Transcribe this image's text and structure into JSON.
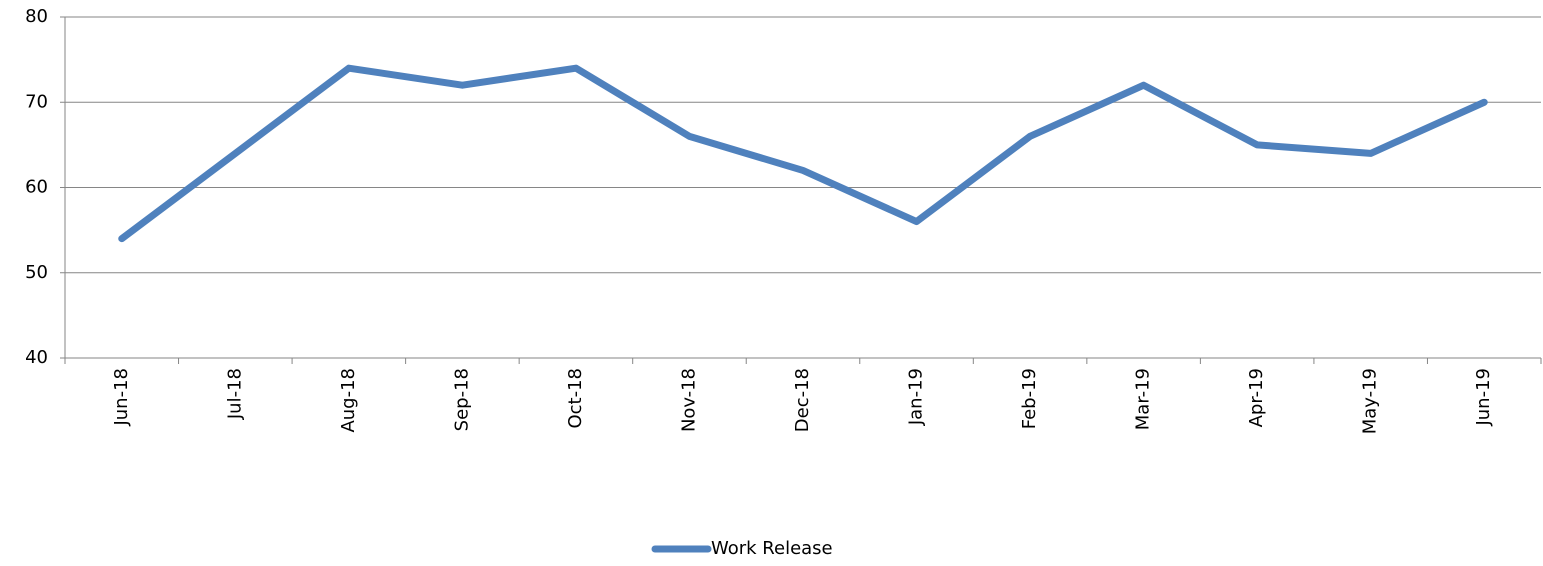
{
  "chart_data": {
    "type": "line",
    "categories": [
      "Jun-18",
      "Jul-18",
      "Aug-18",
      "Sep-18",
      "Oct-18",
      "Nov-18",
      "Dec-18",
      "Jan-19",
      "Feb-19",
      "Mar-19",
      "Apr-19",
      "May-19",
      "Jun-19"
    ],
    "series": [
      {
        "name": "Work Release",
        "color": "#4f81bd",
        "values": [
          54,
          64,
          74,
          72,
          74,
          66,
          62,
          56,
          66,
          72,
          65,
          64,
          70
        ]
      }
    ],
    "ylim": [
      40,
      80
    ],
    "yticks": [
      40,
      50,
      60,
      70,
      80
    ],
    "grid": true,
    "legend": "bottom"
  }
}
